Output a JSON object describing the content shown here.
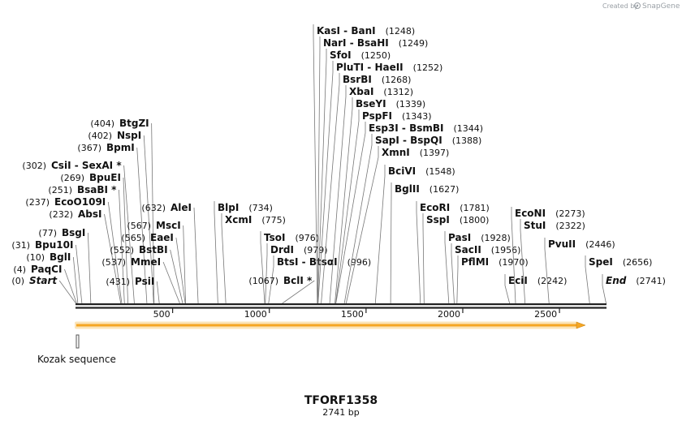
{
  "branding": {
    "created_by": "Created by",
    "product": "SnapGene"
  },
  "sequence": {
    "name": "TFORF1358",
    "length_label": "2741 bp",
    "length": 2741
  },
  "axis_ticks": [
    {
      "value": 500,
      "label": "500"
    },
    {
      "value": 1000,
      "label": "1000"
    },
    {
      "value": 1500,
      "label": "1500"
    },
    {
      "value": 2000,
      "label": "2000"
    },
    {
      "value": 2500,
      "label": "2500"
    }
  ],
  "features": [
    {
      "id": "orf",
      "name": "",
      "start": 1,
      "end": 2741,
      "color": "#f5a623"
    },
    {
      "id": "kozak",
      "name": "Kozak sequence",
      "start": 1,
      "end": 10,
      "color": "#888888"
    }
  ],
  "colors": {
    "orf_fill": "#f5a623",
    "orf_glow": "#fbe4b8",
    "backbone": "#222222",
    "leader": "#777777"
  },
  "sites": [
    {
      "name": "Start",
      "pos": 0,
      "pos_label": "(0)",
      "italic": true
    },
    {
      "name": "PaqCI",
      "pos": 4,
      "pos_label": "(4)"
    },
    {
      "name": "BglI",
      "pos": 10,
      "pos_label": "(10)"
    },
    {
      "name": "Bpu10I",
      "pos": 31,
      "pos_label": "(31)"
    },
    {
      "name": "BsgI",
      "pos": 77,
      "pos_label": "(77)"
    },
    {
      "name": "AbsI",
      "pos": 232,
      "pos_label": "(232)"
    },
    {
      "name": "EcoO109I",
      "pos": 237,
      "pos_label": "(237)"
    },
    {
      "name": "BsaBI *",
      "pos": 251,
      "pos_label": "(251)"
    },
    {
      "name": "BpuEI",
      "pos": 269,
      "pos_label": "(269)"
    },
    {
      "name": "CsiI  - SexAI *",
      "pos": 302,
      "pos_label": "(302)"
    },
    {
      "name": "BpmI",
      "pos": 367,
      "pos_label": "(367)"
    },
    {
      "name": "NspI",
      "pos": 402,
      "pos_label": "(402)"
    },
    {
      "name": "BtgZI",
      "pos": 404,
      "pos_label": "(404)"
    },
    {
      "name": "PsiI",
      "pos": 431,
      "pos_label": "(431)"
    },
    {
      "name": "MmeI",
      "pos": 537,
      "pos_label": "(537)"
    },
    {
      "name": "BstBI",
      "pos": 552,
      "pos_label": "(552)"
    },
    {
      "name": "EaeI",
      "pos": 565,
      "pos_label": "(565)"
    },
    {
      "name": "MscI",
      "pos": 567,
      "pos_label": "(567)"
    },
    {
      "name": "AleI",
      "pos": 632,
      "pos_label": "(632)"
    },
    {
      "name": "BlpI",
      "pos": 734,
      "pos_label": "(734)"
    },
    {
      "name": "XcmI",
      "pos": 775,
      "pos_label": "(775)"
    },
    {
      "name": "TsoI",
      "pos": 976,
      "pos_label": "(976)"
    },
    {
      "name": "DrdI",
      "pos": 979,
      "pos_label": "(979)"
    },
    {
      "name": "BtsI  - BtsαI",
      "pos": 996,
      "pos_label": "(996)"
    },
    {
      "name": "BclI *",
      "pos": 1067,
      "pos_label": "(1067)"
    },
    {
      "name": "KasI  - BanI",
      "pos": 1248,
      "pos_label": "(1248)"
    },
    {
      "name": "NarI  - BsaHI",
      "pos": 1249,
      "pos_label": "(1249)"
    },
    {
      "name": "SfoI",
      "pos": 1250,
      "pos_label": "(1250)"
    },
    {
      "name": "PluTI  - HaeII",
      "pos": 1252,
      "pos_label": "(1252)"
    },
    {
      "name": "BsrBI",
      "pos": 1268,
      "pos_label": "(1268)"
    },
    {
      "name": "XbaI",
      "pos": 1312,
      "pos_label": "(1312)"
    },
    {
      "name": "BseYI",
      "pos": 1339,
      "pos_label": "(1339)"
    },
    {
      "name": "PspFI",
      "pos": 1343,
      "pos_label": "(1343)"
    },
    {
      "name": "Esp3I  - BsmBI",
      "pos": 1344,
      "pos_label": "(1344)"
    },
    {
      "name": "SapI  - BspQI",
      "pos": 1388,
      "pos_label": "(1388)"
    },
    {
      "name": "XmnI",
      "pos": 1397,
      "pos_label": "(1397)"
    },
    {
      "name": "BciVI",
      "pos": 1548,
      "pos_label": "(1548)"
    },
    {
      "name": "BglII",
      "pos": 1627,
      "pos_label": "(1627)"
    },
    {
      "name": "EcoRI",
      "pos": 1781,
      "pos_label": "(1781)"
    },
    {
      "name": "SspI",
      "pos": 1800,
      "pos_label": "(1800)"
    },
    {
      "name": "PasI",
      "pos": 1928,
      "pos_label": "(1928)"
    },
    {
      "name": "SacII",
      "pos": 1956,
      "pos_label": "(1956)"
    },
    {
      "name": "PflMI",
      "pos": 1970,
      "pos_label": "(1970)"
    },
    {
      "name": "EciI",
      "pos": 2242,
      "pos_label": "(2242)"
    },
    {
      "name": "EcoNI",
      "pos": 2273,
      "pos_label": "(2273)"
    },
    {
      "name": "StuI",
      "pos": 2322,
      "pos_label": "(2322)"
    },
    {
      "name": "PvuII",
      "pos": 2446,
      "pos_label": "(2446)"
    },
    {
      "name": "SpeI",
      "pos": 2656,
      "pos_label": "(2656)"
    },
    {
      "name": "End",
      "pos": 2741,
      "pos_label": "(2741)",
      "italic": true
    }
  ]
}
